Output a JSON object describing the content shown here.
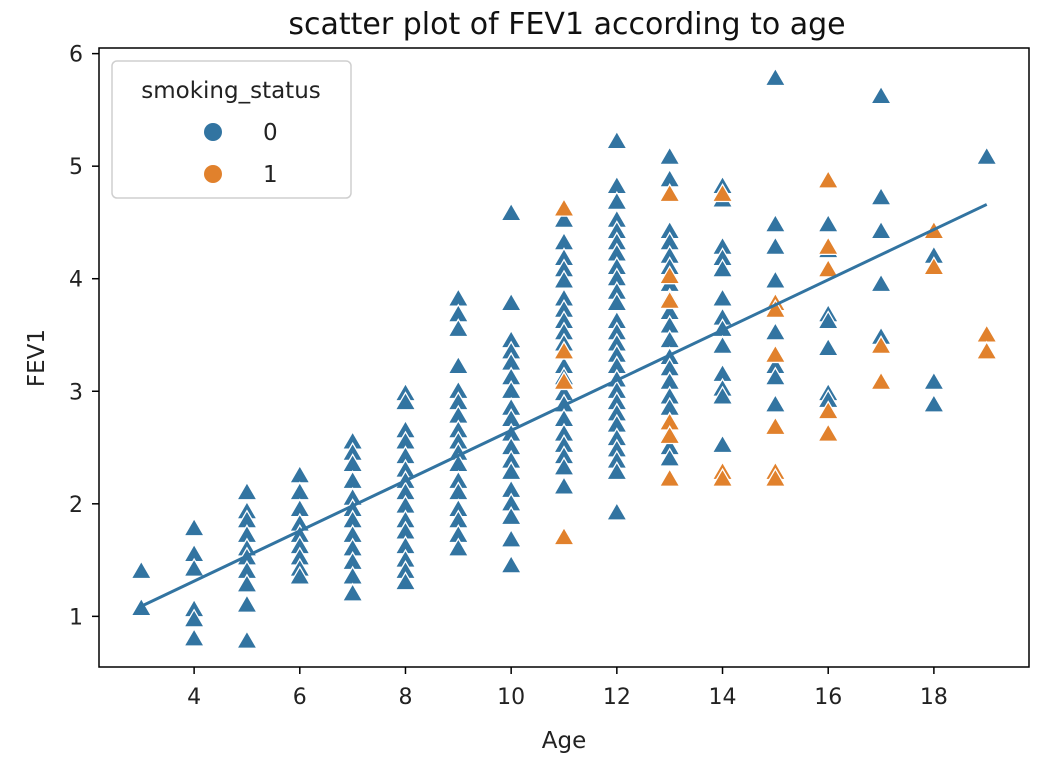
{
  "chart_data": {
    "type": "scatter",
    "title": "scatter plot of FEV1 according to  age",
    "xlabel": "Age",
    "ylabel": "FEV1",
    "xlim": [
      2.2,
      19.8
    ],
    "ylim": [
      0.55,
      6.05
    ],
    "xticks": [
      4,
      6,
      8,
      10,
      12,
      14,
      16,
      18
    ],
    "yticks": [
      1,
      2,
      3,
      4,
      5,
      6
    ],
    "grid": false,
    "legend": {
      "title": "smoking_status",
      "placement": "top-left",
      "entries": [
        {
          "label": "0",
          "color": "#3274a1"
        },
        {
          "label": "1",
          "color": "#e1812c"
        }
      ]
    },
    "marker": "triangle",
    "series": [
      {
        "name": "0",
        "color": "#3274a1",
        "points": [
          [
            3,
            1.4
          ],
          [
            3,
            1.07
          ],
          [
            4,
            1.78
          ],
          [
            4,
            1.55
          ],
          [
            4,
            1.42
          ],
          [
            4,
            1.06
          ],
          [
            4,
            0.97
          ],
          [
            4,
            0.8
          ],
          [
            5,
            2.1
          ],
          [
            5,
            1.93
          ],
          [
            5,
            1.85
          ],
          [
            5,
            1.72
          ],
          [
            5,
            1.6
          ],
          [
            5,
            1.52
          ],
          [
            5,
            1.4
          ],
          [
            5,
            1.28
          ],
          [
            5,
            1.1
          ],
          [
            5,
            0.78
          ],
          [
            6,
            2.25
          ],
          [
            6,
            2.1
          ],
          [
            6,
            1.95
          ],
          [
            6,
            1.82
          ],
          [
            6,
            1.72
          ],
          [
            6,
            1.62
          ],
          [
            6,
            1.52
          ],
          [
            6,
            1.42
          ],
          [
            6,
            1.35
          ],
          [
            7,
            2.55
          ],
          [
            7,
            2.45
          ],
          [
            7,
            2.35
          ],
          [
            7,
            2.2
          ],
          [
            7,
            2.05
          ],
          [
            7,
            1.95
          ],
          [
            7,
            1.85
          ],
          [
            7,
            1.72
          ],
          [
            7,
            1.6
          ],
          [
            7,
            1.48
          ],
          [
            7,
            1.35
          ],
          [
            7,
            1.2
          ],
          [
            8,
            2.98
          ],
          [
            8,
            2.9
          ],
          [
            8,
            2.65
          ],
          [
            8,
            2.55
          ],
          [
            8,
            2.42
          ],
          [
            8,
            2.3
          ],
          [
            8,
            2.2
          ],
          [
            8,
            2.1
          ],
          [
            8,
            1.98
          ],
          [
            8,
            1.85
          ],
          [
            8,
            1.75
          ],
          [
            8,
            1.62
          ],
          [
            8,
            1.5
          ],
          [
            8,
            1.4
          ],
          [
            8,
            1.3
          ],
          [
            9,
            3.82
          ],
          [
            9,
            3.68
          ],
          [
            9,
            3.55
          ],
          [
            9,
            3.22
          ],
          [
            9,
            3.0
          ],
          [
            9,
            2.9
          ],
          [
            9,
            2.78
          ],
          [
            9,
            2.65
          ],
          [
            9,
            2.55
          ],
          [
            9,
            2.45
          ],
          [
            9,
            2.35
          ],
          [
            9,
            2.2
          ],
          [
            9,
            2.1
          ],
          [
            9,
            1.95
          ],
          [
            9,
            1.85
          ],
          [
            9,
            1.72
          ],
          [
            9,
            1.6
          ],
          [
            10,
            4.58
          ],
          [
            10,
            3.78
          ],
          [
            10,
            3.45
          ],
          [
            10,
            3.35
          ],
          [
            10,
            3.25
          ],
          [
            10,
            3.12
          ],
          [
            10,
            3.0
          ],
          [
            10,
            2.85
          ],
          [
            10,
            2.75
          ],
          [
            10,
            2.62
          ],
          [
            10,
            2.5
          ],
          [
            10,
            2.38
          ],
          [
            10,
            2.28
          ],
          [
            10,
            2.12
          ],
          [
            10,
            2.0
          ],
          [
            10,
            1.88
          ],
          [
            10,
            1.68
          ],
          [
            10,
            1.45
          ],
          [
            11,
            4.52
          ],
          [
            11,
            4.32
          ],
          [
            11,
            4.18
          ],
          [
            11,
            4.08
          ],
          [
            11,
            3.98
          ],
          [
            11,
            3.82
          ],
          [
            11,
            3.72
          ],
          [
            11,
            3.62
          ],
          [
            11,
            3.52
          ],
          [
            11,
            3.42
          ],
          [
            11,
            3.22
          ],
          [
            11,
            3.12
          ],
          [
            11,
            2.98
          ],
          [
            11,
            2.88
          ],
          [
            11,
            2.75
          ],
          [
            11,
            2.62
          ],
          [
            11,
            2.52
          ],
          [
            11,
            2.42
          ],
          [
            11,
            2.32
          ],
          [
            11,
            2.15
          ],
          [
            12,
            5.22
          ],
          [
            12,
            4.82
          ],
          [
            12,
            4.68
          ],
          [
            12,
            4.52
          ],
          [
            12,
            4.42
          ],
          [
            12,
            4.32
          ],
          [
            12,
            4.22
          ],
          [
            12,
            4.1
          ],
          [
            12,
            4.0
          ],
          [
            12,
            3.88
          ],
          [
            12,
            3.78
          ],
          [
            12,
            3.62
          ],
          [
            12,
            3.52
          ],
          [
            12,
            3.42
          ],
          [
            12,
            3.32
          ],
          [
            12,
            3.22
          ],
          [
            12,
            3.1
          ],
          [
            12,
            3.0
          ],
          [
            12,
            2.9
          ],
          [
            12,
            2.8
          ],
          [
            12,
            2.7
          ],
          [
            12,
            2.58
          ],
          [
            12,
            2.48
          ],
          [
            12,
            2.38
          ],
          [
            12,
            2.28
          ],
          [
            12,
            1.92
          ],
          [
            13,
            5.08
          ],
          [
            13,
            4.88
          ],
          [
            13,
            4.42
          ],
          [
            13,
            4.32
          ],
          [
            13,
            4.2
          ],
          [
            13,
            4.1
          ],
          [
            13,
            3.95
          ],
          [
            13,
            3.82
          ],
          [
            13,
            3.7
          ],
          [
            13,
            3.58
          ],
          [
            13,
            3.45
          ],
          [
            13,
            3.3
          ],
          [
            13,
            3.2
          ],
          [
            13,
            3.08
          ],
          [
            13,
            2.95
          ],
          [
            13,
            2.85
          ],
          [
            13,
            2.72
          ],
          [
            13,
            2.62
          ],
          [
            13,
            2.5
          ],
          [
            13,
            2.4
          ],
          [
            14,
            4.82
          ],
          [
            14,
            4.7
          ],
          [
            14,
            4.28
          ],
          [
            14,
            4.18
          ],
          [
            14,
            4.08
          ],
          [
            14,
            3.82
          ],
          [
            14,
            3.65
          ],
          [
            14,
            3.55
          ],
          [
            14,
            3.4
          ],
          [
            14,
            3.15
          ],
          [
            14,
            3.02
          ],
          [
            14,
            2.95
          ],
          [
            14,
            2.52
          ],
          [
            15,
            5.78
          ],
          [
            15,
            4.48
          ],
          [
            15,
            4.28
          ],
          [
            15,
            3.98
          ],
          [
            15,
            3.52
          ],
          [
            15,
            3.22
          ],
          [
            15,
            3.12
          ],
          [
            15,
            2.88
          ],
          [
            16,
            4.48
          ],
          [
            16,
            4.25
          ],
          [
            16,
            3.68
          ],
          [
            16,
            3.62
          ],
          [
            16,
            3.38
          ],
          [
            16,
            2.98
          ],
          [
            16,
            2.92
          ],
          [
            17,
            5.62
          ],
          [
            17,
            4.72
          ],
          [
            17,
            4.42
          ],
          [
            17,
            3.95
          ],
          [
            17,
            3.48
          ],
          [
            18,
            4.2
          ],
          [
            18,
            3.08
          ],
          [
            18,
            2.88
          ],
          [
            19,
            5.08
          ]
        ]
      },
      {
        "name": "1",
        "color": "#e1812c",
        "points": [
          [
            11,
            4.62
          ],
          [
            11,
            3.35
          ],
          [
            11,
            3.08
          ],
          [
            11,
            1.7
          ],
          [
            13,
            4.75
          ],
          [
            13,
            4.02
          ],
          [
            13,
            3.8
          ],
          [
            13,
            2.72
          ],
          [
            13,
            2.6
          ],
          [
            13,
            2.22
          ],
          [
            14,
            4.75
          ],
          [
            14,
            2.28
          ],
          [
            14,
            2.22
          ],
          [
            15,
            3.78
          ],
          [
            15,
            3.72
          ],
          [
            15,
            3.32
          ],
          [
            15,
            2.68
          ],
          [
            15,
            2.28
          ],
          [
            15,
            2.22
          ],
          [
            16,
            4.87
          ],
          [
            16,
            4.28
          ],
          [
            16,
            4.08
          ],
          [
            16,
            2.82
          ],
          [
            16,
            2.62
          ],
          [
            17,
            3.4
          ],
          [
            17,
            3.08
          ],
          [
            18,
            4.42
          ],
          [
            18,
            4.1
          ],
          [
            19,
            3.5
          ],
          [
            19,
            3.35
          ]
        ]
      }
    ],
    "regression_line": {
      "x": [
        3,
        19
      ],
      "y": [
        1.09,
        4.66
      ],
      "color": "#3274a1"
    }
  }
}
